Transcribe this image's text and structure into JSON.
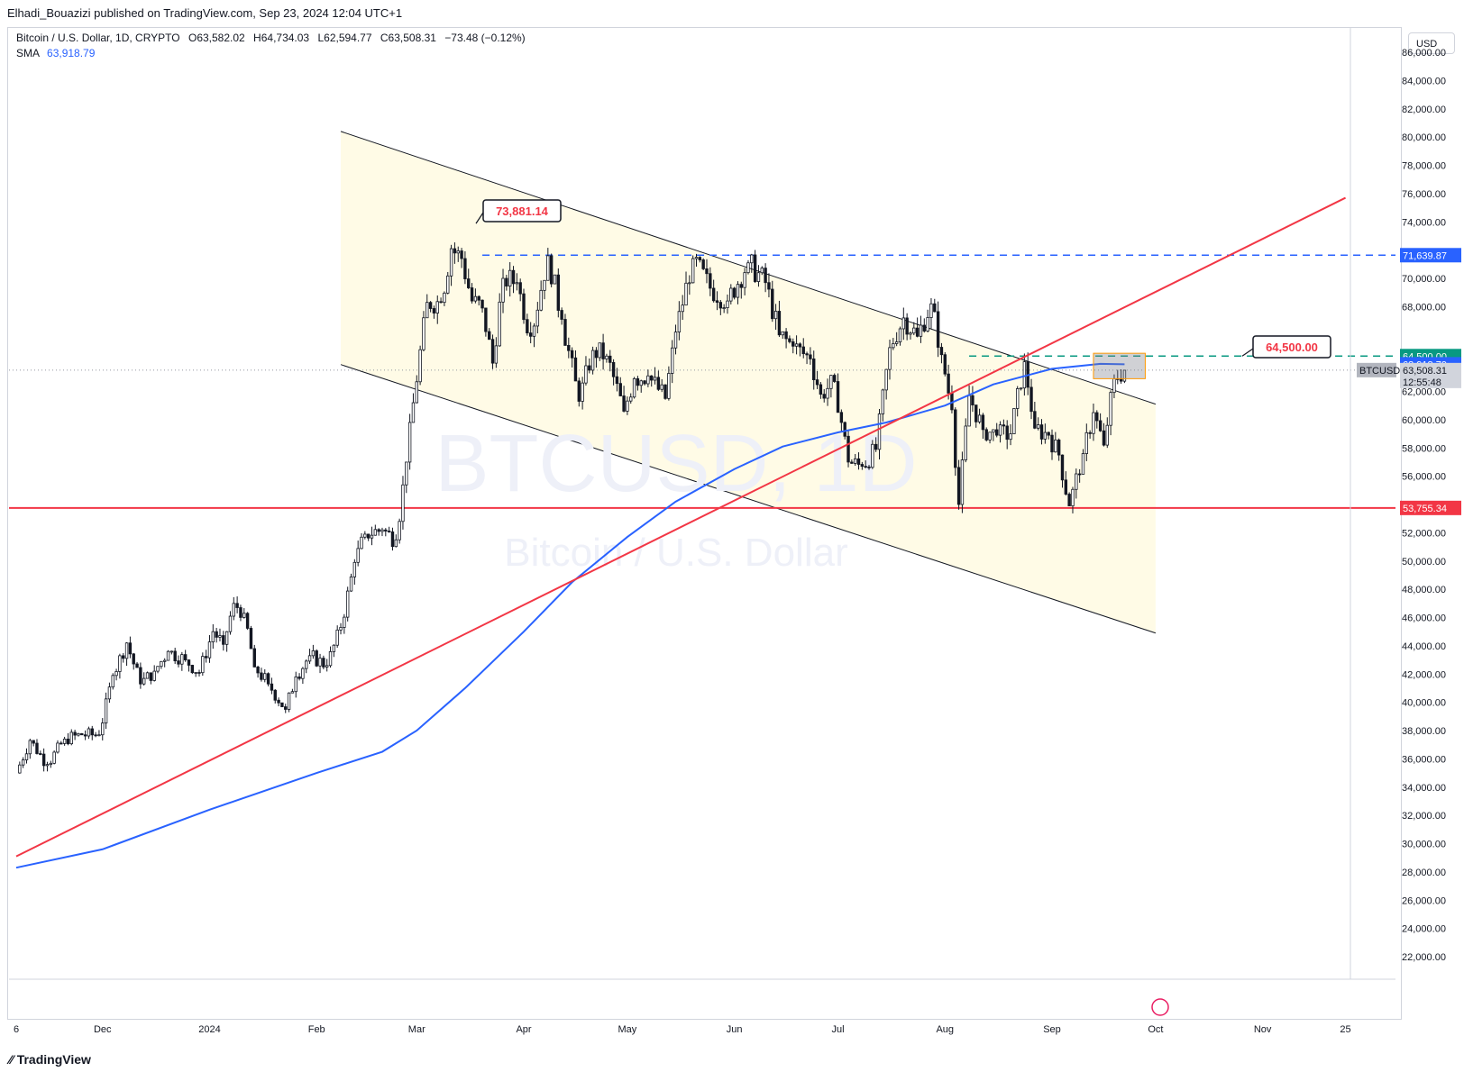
{
  "header": {
    "publisher": "Elhadi_Bouazizi published on TradingView.com, Sep 23, 2024 12:04 UTC+1"
  },
  "legend": {
    "symbol": "Bitcoin / U.S. Dollar, 1D, CRYPTO",
    "o_label": "O",
    "o": "63,582.02",
    "h_label": "H",
    "h": "64,734.03",
    "l_label": "L",
    "l": "62,594.77",
    "c_label": "C",
    "c": "63,508.31",
    "change": "−73.48 (−0.12%)",
    "sma_label": "SMA",
    "sma_value": "63,918.79"
  },
  "currency": "USD",
  "watermark": {
    "line1": "BTCUSD, 1D",
    "line2": "Bitcoin / U.S. Dollar"
  },
  "footer": {
    "brand": "TradingView"
  },
  "colors": {
    "up": "#ffffff",
    "down": "#131722",
    "wick": "#131722",
    "sma": "#2962ff",
    "red": "#f23645",
    "blue_dash": "#2962ff",
    "green_dash": "#089981",
    "channel_fill": "#fffbe6",
    "channel_line": "#131722"
  },
  "chart_data": {
    "type": "candlestick",
    "title": "Bitcoin / U.S. Dollar, 1D, CRYPTO",
    "ylim": [
      20000,
      88000
    ],
    "y_ticks": [
      "22,000.00",
      "24,000.00",
      "26,000.00",
      "28,000.00",
      "30,000.00",
      "32,000.00",
      "34,000.00",
      "36,000.00",
      "38,000.00",
      "40,000.00",
      "42,000.00",
      "44,000.00",
      "46,000.00",
      "48,000.00",
      "50,000.00",
      "52,000.00",
      "56,000.00",
      "58,000.00",
      "60,000.00",
      "62,000.00",
      "68,000.00",
      "70,000.00",
      "74,000.00",
      "76,000.00",
      "78,000.00",
      "80,000.00",
      "82,000.00",
      "84,000.00",
      "86,000.00"
    ],
    "x_ticks": [
      {
        "label": "6",
        "date": "2023-11-06"
      },
      {
        "label": "Dec",
        "date": "2023-12-01"
      },
      {
        "label": "2024",
        "date": "2024-01-01"
      },
      {
        "label": "Feb",
        "date": "2024-02-01"
      },
      {
        "label": "Mar",
        "date": "2024-03-01"
      },
      {
        "label": "Apr",
        "date": "2024-04-01"
      },
      {
        "label": "May",
        "date": "2024-05-01"
      },
      {
        "label": "Jun",
        "date": "2024-06-01"
      },
      {
        "label": "Jul",
        "date": "2024-07-01"
      },
      {
        "label": "Aug",
        "date": "2024-08-01"
      },
      {
        "label": "Sep",
        "date": "2024-09-01"
      },
      {
        "label": "Oct",
        "date": "2024-10-01"
      },
      {
        "label": "Nov",
        "date": "2024-11-01"
      },
      {
        "label": "25",
        "date": "2024-11-25"
      }
    ],
    "close_series": {
      "name": "BTCUSD",
      "points": [
        [
          "2023-11-06",
          35000
        ],
        [
          "2023-11-10",
          37300
        ],
        [
          "2023-11-15",
          35600
        ],
        [
          "2023-11-20",
          37400
        ],
        [
          "2023-11-25",
          37700
        ],
        [
          "2023-11-30",
          37700
        ],
        [
          "2023-12-04",
          41900
        ],
        [
          "2023-12-08",
          44200
        ],
        [
          "2023-12-12",
          41300
        ],
        [
          "2023-12-16",
          42200
        ],
        [
          "2023-12-20",
          43600
        ],
        [
          "2023-12-25",
          43000
        ],
        [
          "2023-12-29",
          42100
        ],
        [
          "2024-01-02",
          45000
        ],
        [
          "2024-01-05",
          44100
        ],
        [
          "2024-01-08",
          47000
        ],
        [
          "2024-01-11",
          46300
        ],
        [
          "2024-01-14",
          42500
        ],
        [
          "2024-01-18",
          41300
        ],
        [
          "2024-01-23",
          39500
        ],
        [
          "2024-01-26",
          41800
        ],
        [
          "2024-01-30",
          43300
        ],
        [
          "2024-02-04",
          42600
        ],
        [
          "2024-02-08",
          45300
        ],
        [
          "2024-02-12",
          49900
        ],
        [
          "2024-02-15",
          51900
        ],
        [
          "2024-02-20",
          52200
        ],
        [
          "2024-02-24",
          51500
        ],
        [
          "2024-02-27",
          57000
        ],
        [
          "2024-02-29",
          61200
        ],
        [
          "2024-03-04",
          68300
        ],
        [
          "2024-03-08",
          68300
        ],
        [
          "2024-03-11",
          72100
        ],
        [
          "2024-03-14",
          71400
        ],
        [
          "2024-03-17",
          68400
        ],
        [
          "2024-03-20",
          67900
        ],
        [
          "2024-03-23",
          64000
        ],
        [
          "2024-03-26",
          70000
        ],
        [
          "2024-03-30",
          69700
        ],
        [
          "2024-04-03",
          65900
        ],
        [
          "2024-04-08",
          71600
        ],
        [
          "2024-04-12",
          67100
        ],
        [
          "2024-04-17",
          61300
        ],
        [
          "2024-04-21",
          64900
        ],
        [
          "2024-04-25",
          64500
        ],
        [
          "2024-04-30",
          60600
        ],
        [
          "2024-05-03",
          62900
        ],
        [
          "2024-05-07",
          63100
        ],
        [
          "2024-05-12",
          61500
        ],
        [
          "2024-05-15",
          66200
        ],
        [
          "2024-05-20",
          71400
        ],
        [
          "2024-05-25",
          69300
        ],
        [
          "2024-05-30",
          68400
        ],
        [
          "2024-06-05",
          71100
        ],
        [
          "2024-06-10",
          69700
        ],
        [
          "2024-06-14",
          66000
        ],
        [
          "2024-06-18",
          65200
        ],
        [
          "2024-06-23",
          64300
        ],
        [
          "2024-06-26",
          61800
        ],
        [
          "2024-06-30",
          62700
        ],
        [
          "2024-07-04",
          57000
        ],
        [
          "2024-07-08",
          56700
        ],
        [
          "2024-07-12",
          57900
        ],
        [
          "2024-07-16",
          65100
        ],
        [
          "2024-07-20",
          67200
        ],
        [
          "2024-07-24",
          65900
        ],
        [
          "2024-07-28",
          68200
        ],
        [
          "2024-07-31",
          64600
        ],
        [
          "2024-08-03",
          60700
        ],
        [
          "2024-08-05",
          54000
        ],
        [
          "2024-08-08",
          61700
        ],
        [
          "2024-08-12",
          59300
        ],
        [
          "2024-08-16",
          58900
        ],
        [
          "2024-08-20",
          59000
        ],
        [
          "2024-08-24",
          64100
        ],
        [
          "2024-08-27",
          59400
        ],
        [
          "2024-08-31",
          58900
        ],
        [
          "2024-09-03",
          57500
        ],
        [
          "2024-09-06",
          53900
        ],
        [
          "2024-09-10",
          57600
        ],
        [
          "2024-09-13",
          60500
        ],
        [
          "2024-09-16",
          58200
        ],
        [
          "2024-09-19",
          62900
        ],
        [
          "2024-09-22",
          63500
        ]
      ]
    },
    "sma": {
      "name": "SMA",
      "points": [
        [
          "2023-11-06",
          28300
        ],
        [
          "2023-12-01",
          29600
        ],
        [
          "2024-01-01",
          32400
        ],
        [
          "2024-02-01",
          35000
        ],
        [
          "2024-02-20",
          36500
        ],
        [
          "2024-03-01",
          38000
        ],
        [
          "2024-03-15",
          41000
        ],
        [
          "2024-04-01",
          45000
        ],
        [
          "2024-04-15",
          48500
        ],
        [
          "2024-05-01",
          51700
        ],
        [
          "2024-05-15",
          54200
        ],
        [
          "2024-06-01",
          56500
        ],
        [
          "2024-06-15",
          58100
        ],
        [
          "2024-07-01",
          59100
        ],
        [
          "2024-07-15",
          59800
        ],
        [
          "2024-08-01",
          61000
        ],
        [
          "2024-08-15",
          62500
        ],
        [
          "2024-09-01",
          63600
        ],
        [
          "2024-09-15",
          63950
        ],
        [
          "2024-09-22",
          63918.79
        ]
      ]
    },
    "lines": {
      "channel_upper": [
        [
          "2024-02-08",
          80400
        ],
        [
          "2024-10-01",
          61100
        ]
      ],
      "channel_lower": [
        [
          "2024-02-08",
          63900
        ],
        [
          "2024-10-01",
          44900
        ]
      ],
      "channel_fill_until": "2024-10-01",
      "red_rising_trend": [
        [
          "2023-11-06",
          29100
        ],
        [
          "2024-11-25",
          75700
        ]
      ],
      "red_support": 53755.34,
      "blue_resistance": 71639.87,
      "green_target": 64500.0,
      "ath_label": "73,881.14",
      "target_label": "64,500.00",
      "range_box": [
        [
          "2024-09-13",
          64700
        ],
        [
          "2024-09-28",
          62900
        ]
      ]
    },
    "price_labels": [
      {
        "text": "71,639.87",
        "value": 71639.87,
        "color": "#2962ff"
      },
      {
        "text": "64,500.00",
        "value": 64500,
        "color": "#089981"
      },
      {
        "text": "63,918.79",
        "value": 63918.79,
        "color": "#2962ff"
      },
      {
        "text": "63,508.31",
        "value": 63508.31,
        "color": "#d1d4dc",
        "extra": "12:55:48",
        "symbol": "BTCUSD"
      },
      {
        "text": "53,755.34",
        "value": 53755.34,
        "color": "#f23645"
      }
    ]
  }
}
